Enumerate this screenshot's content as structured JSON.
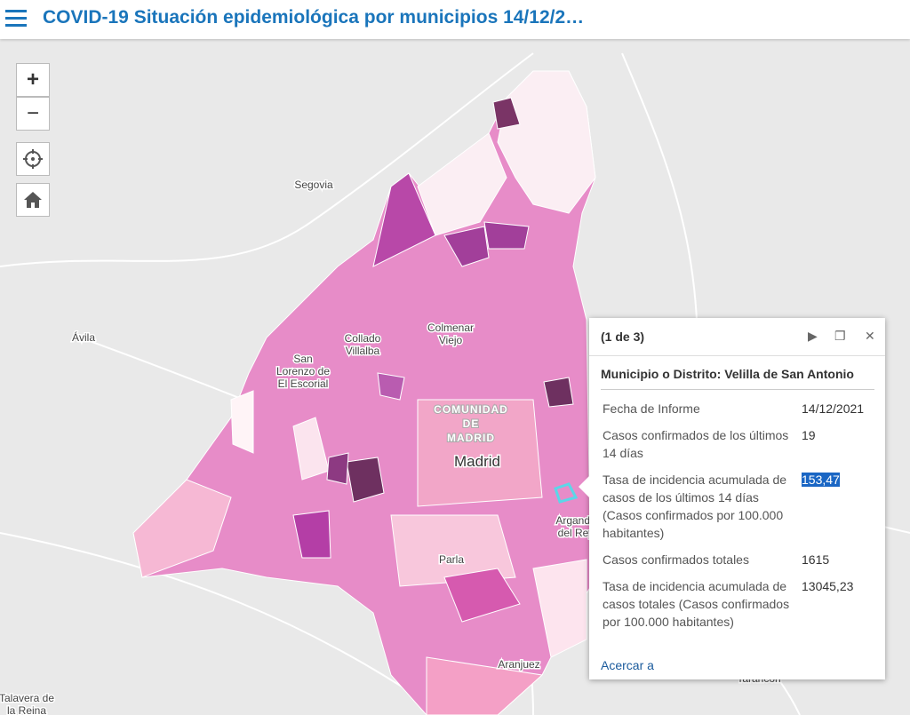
{
  "header": {
    "title": "COVID-19 Situación epidemiológica por municipios 14/12/2…"
  },
  "map_controls": {
    "zoom_in": "+",
    "zoom_out": "−"
  },
  "map_labels": [
    {
      "lines": [
        "Segovia"
      ]
    },
    {
      "lines": [
        "Ávila"
      ]
    },
    {
      "lines": [
        "Collado",
        "Villalba"
      ]
    },
    {
      "lines": [
        "San",
        "Lorenzo de",
        "El Escorial"
      ]
    },
    {
      "lines": [
        "Colmenar",
        "Viejo"
      ]
    },
    {
      "lines": [
        "COMUNIDAD",
        "DE",
        "MADRID"
      ]
    },
    {
      "lines": [
        "Madrid"
      ]
    },
    {
      "lines": [
        "Parla"
      ]
    },
    {
      "lines": [
        "Aranjuez"
      ]
    },
    {
      "lines": [
        "Arganda",
        "del Rey"
      ]
    },
    {
      "lines": [
        "Talavera de",
        "la Reina"
      ]
    },
    {
      "lines": [
        "Tarancon"
      ]
    }
  ],
  "popup": {
    "counter": "(1 de 3)",
    "title": "Municipio o Distrito: Velilla de San Antonio",
    "fields": [
      {
        "label": "Fecha de Informe",
        "value": "14/12/2021"
      },
      {
        "label": "Casos confirmados de los últimos 14 días",
        "value": "19"
      },
      {
        "label": "Tasa de incidencia acumulada de casos de los últimos 14 días (Casos confirmados por 100.000 habitantes)",
        "value": "153,47"
      },
      {
        "label": "Casos confirmados totales",
        "value": "1615"
      },
      {
        "label": "Tasa de incidencia acumulada de casos totales (Casos confirmados por 100.000 habitantes)",
        "value": "13045,23"
      }
    ],
    "zoom_link": "Acercar a"
  }
}
